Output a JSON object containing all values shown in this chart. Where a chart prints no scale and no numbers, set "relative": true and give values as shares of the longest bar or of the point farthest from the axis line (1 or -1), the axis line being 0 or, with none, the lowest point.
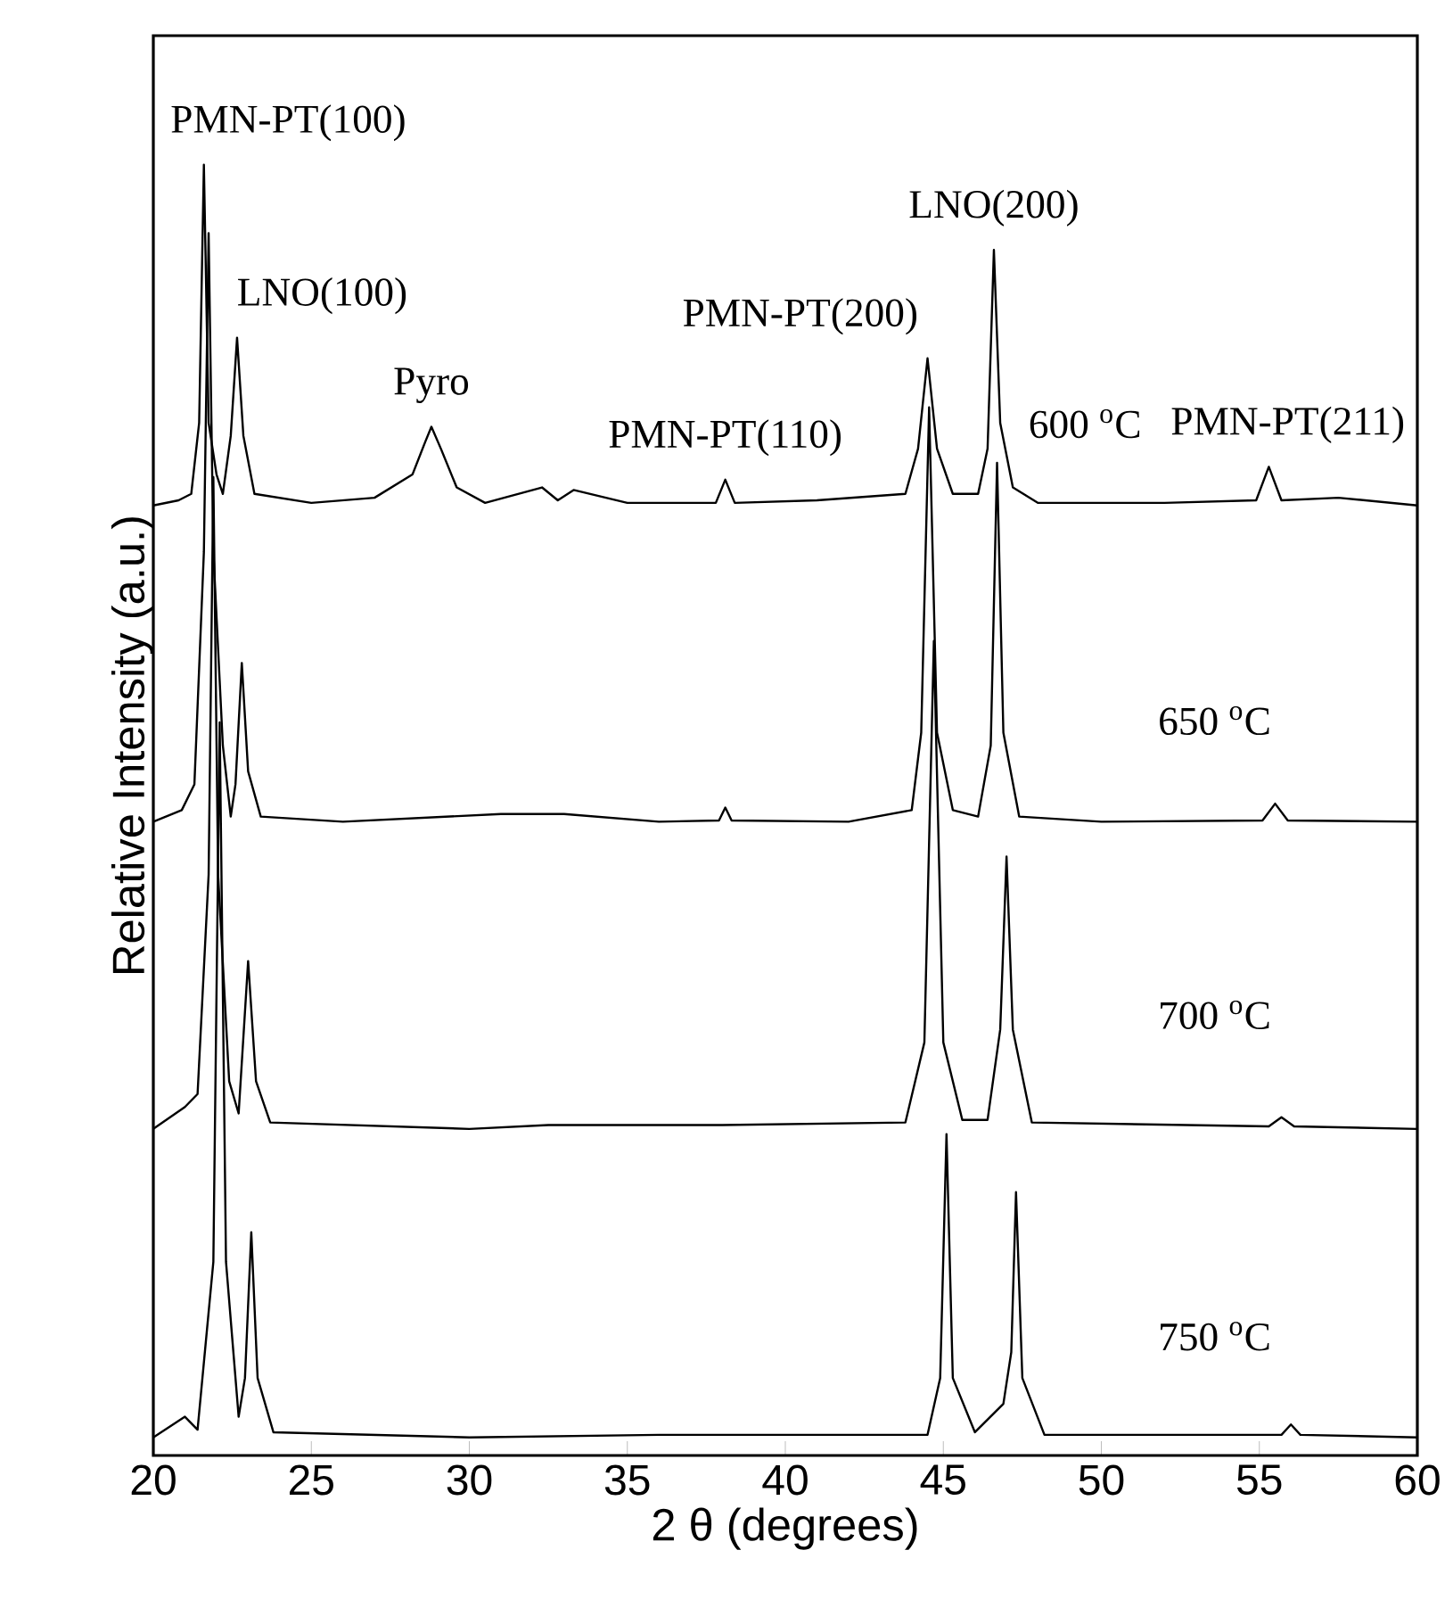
{
  "chart_data": {
    "type": "line",
    "relative": true,
    "xlabel": "2 θ (degrees)",
    "ylabel": "Relative Intensity (a.u.)",
    "xlim": [
      20,
      60
    ],
    "xticks": [
      20,
      25,
      30,
      35,
      40,
      45,
      50,
      55,
      60
    ],
    "legend": false,
    "marker": "none",
    "line_style": "solid",
    "series": [
      {
        "name": "600 $^{o}$C",
        "color": "#000000",
        "x": [
          20,
          20.8,
          21.2,
          21.45,
          21.6,
          21.75,
          22.0,
          22.2,
          22.45,
          22.65,
          22.85,
          23.2,
          25,
          27,
          28.2,
          28.6,
          28.8,
          29.1,
          29.6,
          30.5,
          32.3,
          32.8,
          33.3,
          35,
          37.8,
          38.1,
          38.4,
          41,
          43.8,
          44.2,
          44.5,
          44.8,
          45.3,
          46.1,
          46.4,
          46.6,
          46.8,
          47.2,
          48,
          52,
          54.9,
          55.3,
          55.7,
          57.5,
          60
        ],
        "values": [
          0.736,
          0.74,
          0.745,
          0.8,
          1.0,
          0.8,
          0.76,
          0.745,
          0.79,
          0.866,
          0.79,
          0.745,
          0.738,
          0.742,
          0.76,
          0.785,
          0.797,
          0.78,
          0.75,
          0.738,
          0.75,
          0.74,
          0.748,
          0.738,
          0.738,
          0.756,
          0.738,
          0.74,
          0.745,
          0.78,
          0.85,
          0.78,
          0.745,
          0.745,
          0.78,
          0.934,
          0.8,
          0.75,
          0.738,
          0.738,
          0.74,
          0.766,
          0.74,
          0.742,
          0.736
        ]
      },
      {
        "name": "650 $^{o}$C",
        "color": "#000000",
        "x": [
          20,
          20.9,
          21.3,
          21.6,
          21.75,
          21.9,
          22.2,
          22.45,
          22.6,
          22.8,
          23.0,
          23.4,
          26,
          31,
          33,
          36,
          37.9,
          38.1,
          38.3,
          42,
          44.0,
          44.3,
          44.55,
          44.8,
          45.3,
          46.1,
          46.5,
          46.7,
          46.9,
          47.4,
          50,
          55.1,
          55.5,
          55.9,
          60
        ],
        "values": [
          0.491,
          0.5,
          0.52,
          0.7,
          0.947,
          0.7,
          0.55,
          0.495,
          0.52,
          0.614,
          0.53,
          0.495,
          0.491,
          0.497,
          0.497,
          0.491,
          0.492,
          0.502,
          0.492,
          0.491,
          0.5,
          0.56,
          0.812,
          0.56,
          0.5,
          0.495,
          0.55,
          0.769,
          0.56,
          0.495,
          0.491,
          0.492,
          0.505,
          0.492,
          0.491
        ]
      },
      {
        "name": "700 $^{o}$C",
        "color": "#000000",
        "x": [
          20,
          21.0,
          21.4,
          21.75,
          21.9,
          22.05,
          22.4,
          22.7,
          23.0,
          23.25,
          23.7,
          30,
          32.5,
          38,
          43.8,
          44.4,
          44.7,
          45.0,
          45.6,
          46.4,
          46.8,
          47.0,
          47.2,
          47.8,
          55.3,
          55.7,
          56.1,
          60
        ],
        "values": [
          0.253,
          0.27,
          0.28,
          0.45,
          0.758,
          0.45,
          0.29,
          0.265,
          0.383,
          0.29,
          0.258,
          0.253,
          0.256,
          0.256,
          0.258,
          0.32,
          0.631,
          0.32,
          0.26,
          0.26,
          0.33,
          0.464,
          0.33,
          0.258,
          0.255,
          0.262,
          0.255,
          0.253
        ]
      },
      {
        "name": "750 $^{o}$C",
        "color": "#000000",
        "x": [
          20,
          21.0,
          21.4,
          21.9,
          22.1,
          22.3,
          22.7,
          22.9,
          23.1,
          23.3,
          23.8,
          30,
          36,
          44.5,
          44.9,
          45.1,
          45.3,
          46.0,
          46.9,
          47.15,
          47.3,
          47.5,
          48.2,
          55.7,
          56.0,
          56.3,
          60
        ],
        "values": [
          0.014,
          0.03,
          0.02,
          0.15,
          0.568,
          0.15,
          0.03,
          0.06,
          0.173,
          0.06,
          0.018,
          0.014,
          0.016,
          0.016,
          0.06,
          0.249,
          0.06,
          0.018,
          0.04,
          0.08,
          0.204,
          0.06,
          0.016,
          0.016,
          0.024,
          0.016,
          0.014
        ]
      }
    ],
    "annotations": [
      {
        "text": "PMN-PT(100)",
        "x": 21.6,
        "y": 1.0
      },
      {
        "text": "LNO(100)",
        "x": 22.65,
        "y": 0.866
      },
      {
        "text": "Pyro",
        "x": 28.8,
        "y": 0.797
      },
      {
        "text": "PMN-PT(110)",
        "x": 38.1,
        "y": 0.756
      },
      {
        "text": "PMN-PT(200)",
        "x": 44.5,
        "y": 0.85
      },
      {
        "text": "LNO(200)",
        "x": 46.6,
        "y": 0.934
      },
      {
        "text": "PMN-PT(211)",
        "x": 55.3,
        "y": 0.766
      }
    ]
  }
}
